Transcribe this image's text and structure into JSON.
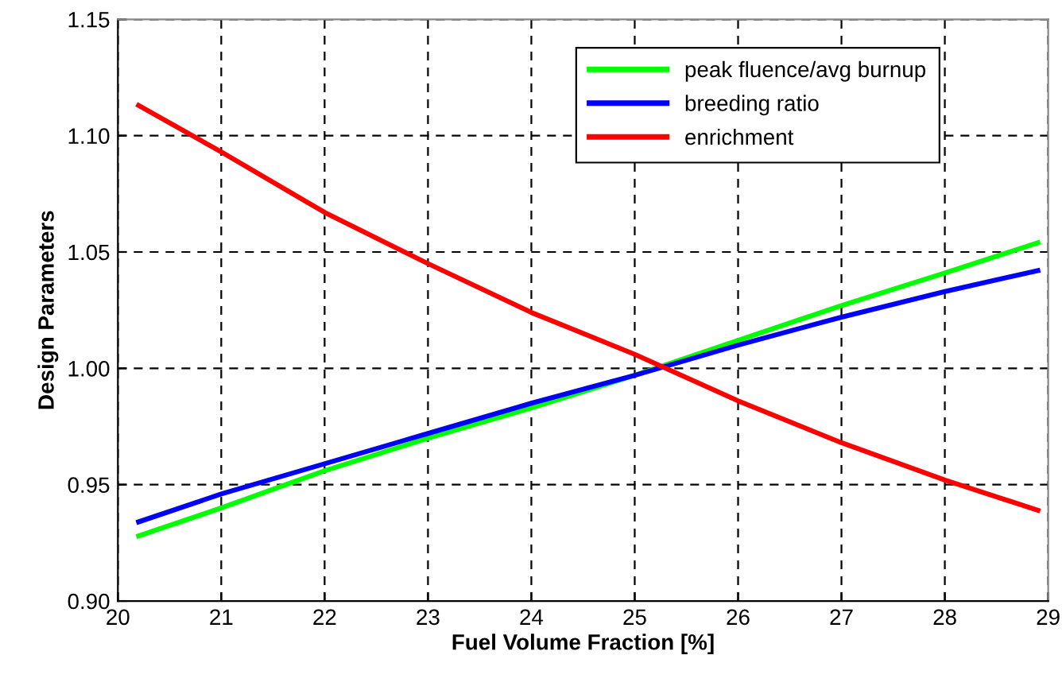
{
  "chart_data": {
    "type": "line",
    "xlabel": "Fuel Volume Fraction [%]",
    "ylabel": "Design Parameters",
    "xlim": [
      20,
      29
    ],
    "xticks": [
      20,
      21,
      22,
      23,
      24,
      25,
      26,
      27,
      28,
      29
    ],
    "ylim": [
      0.9,
      1.15
    ],
    "yticks": [
      {
        "value": 0.9,
        "label": "0.90"
      },
      {
        "value": 0.95,
        "label": "0.95"
      },
      {
        "value": 1.0,
        "label": "1.00"
      },
      {
        "value": 1.05,
        "label": "1.05"
      },
      {
        "value": 1.1,
        "label": "1.10"
      },
      {
        "value": 1.15,
        "label": "1.15"
      }
    ],
    "grid": true,
    "legend": "top right",
    "marker": "none",
    "line_style": "solid",
    "series": [
      {
        "name": "peak fluence/avg burnup",
        "color": "#00ff00",
        "x": [
          20.2,
          21,
          22,
          23,
          24,
          25,
          26,
          27,
          28,
          28.9
        ],
        "values": [
          0.928,
          0.94,
          0.956,
          0.97,
          0.983,
          0.997,
          1.012,
          1.027,
          1.041,
          1.054
        ]
      },
      {
        "name": "breeding ratio",
        "color": "#0000ff",
        "x": [
          20.2,
          21,
          22,
          23,
          24,
          25,
          26,
          27,
          28,
          28.9
        ],
        "values": [
          0.934,
          0.946,
          0.959,
          0.972,
          0.985,
          0.997,
          1.01,
          1.022,
          1.033,
          1.042
        ]
      },
      {
        "name": "enrichment",
        "color": "#ff0000",
        "x": [
          20.2,
          21,
          22,
          23,
          24,
          25,
          26,
          27,
          28,
          28.9
        ],
        "values": [
          1.113,
          1.093,
          1.067,
          1.045,
          1.024,
          1.006,
          0.986,
          0.968,
          0.952,
          0.939
        ]
      }
    ]
  }
}
